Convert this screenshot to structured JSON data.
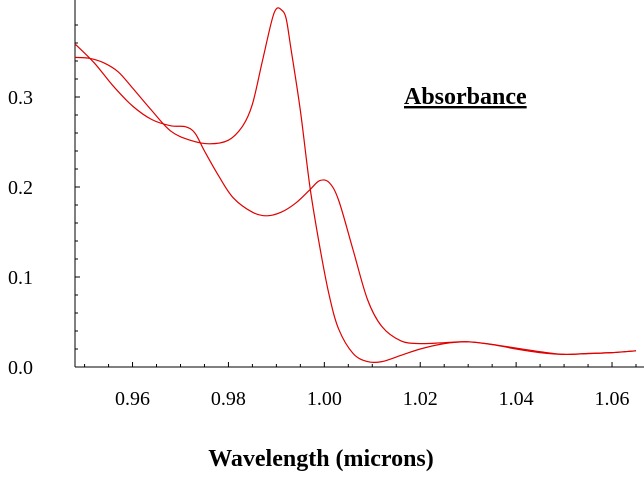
{
  "chart_data": {
    "type": "line",
    "title": "Absorbance",
    "xlabel": "Wavelength (microns)",
    "ylabel": "",
    "xlim": [
      0.948,
      1.065
    ],
    "ylim": [
      0.0,
      0.4
    ],
    "grid": false,
    "line_color": "#e00000",
    "x_ticks": [
      0.96,
      0.98,
      1.0,
      1.02,
      1.04,
      1.06
    ],
    "x_tick_labels": [
      "0.96",
      "0.98",
      "1.00",
      "1.02",
      "1.04",
      "1.06"
    ],
    "y_ticks": [
      0.0,
      0.1,
      0.2,
      0.3
    ],
    "y_tick_labels": [
      "0.0",
      "0.1",
      "0.2",
      "0.3"
    ],
    "series": [
      {
        "x": [
          0.948,
          0.952,
          0.956,
          0.96,
          0.964,
          0.968,
          0.971,
          0.973,
          0.975,
          0.978,
          0.981,
          0.985,
          0.988,
          0.991,
          0.994,
          0.997,
          0.999,
          1.001,
          1.003,
          1.006,
          1.009,
          1.012,
          1.016,
          1.02,
          1.025,
          1.03,
          1.035,
          1.04,
          1.045,
          1.05,
          1.055,
          1.06,
          1.065
        ],
        "y": [
          0.359,
          0.338,
          0.312,
          0.29,
          0.275,
          0.268,
          0.267,
          0.26,
          0.24,
          0.212,
          0.188,
          0.172,
          0.168,
          0.172,
          0.182,
          0.197,
          0.207,
          0.205,
          0.185,
          0.13,
          0.075,
          0.045,
          0.029,
          0.026,
          0.027,
          0.028,
          0.025,
          0.021,
          0.017,
          0.014,
          0.015,
          0.016,
          0.018
        ]
      },
      {
        "x": [
          0.948,
          0.951,
          0.954,
          0.957,
          0.96,
          0.964,
          0.968,
          0.972,
          0.976,
          0.98,
          0.983,
          0.985,
          0.987,
          0.989,
          0.99,
          0.991,
          0.992,
          0.993,
          0.995,
          0.997,
          0.999,
          1.001,
          1.003,
          1.006,
          1.009,
          1.012,
          1.016,
          1.02,
          1.025,
          1.03,
          1.035,
          1.04,
          1.045,
          1.05,
          1.055,
          1.06,
          1.065
        ],
        "y": [
          0.344,
          0.343,
          0.338,
          0.328,
          0.31,
          0.285,
          0.262,
          0.252,
          0.248,
          0.252,
          0.268,
          0.292,
          0.338,
          0.384,
          0.398,
          0.397,
          0.388,
          0.355,
          0.285,
          0.2,
          0.135,
          0.08,
          0.042,
          0.015,
          0.006,
          0.006,
          0.013,
          0.02,
          0.026,
          0.028,
          0.025,
          0.02,
          0.016,
          0.014,
          0.015,
          0.016,
          0.018
        ]
      }
    ]
  }
}
